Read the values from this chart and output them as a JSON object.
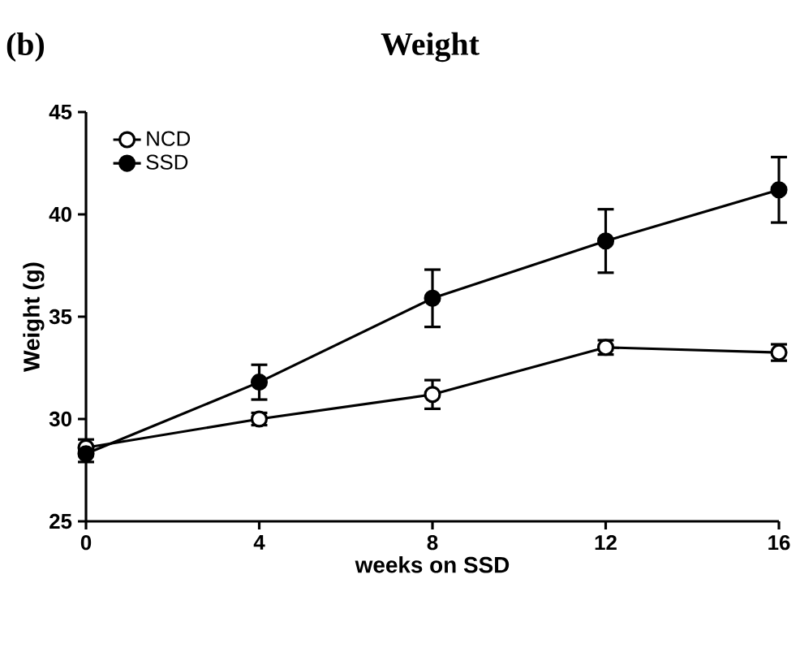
{
  "chart_data": {
    "type": "line",
    "title": "Weight",
    "xlabel": "weeks on SSD",
    "ylabel": "Weight (g)",
    "annotations": [
      "(b)"
    ],
    "x": [
      0,
      4,
      8,
      12,
      16
    ],
    "series": [
      {
        "name": "NCD",
        "color": "#000000",
        "values": [
          28.6,
          30.0,
          31.2,
          33.5,
          33.25
        ],
        "errors": [
          [
            27.9,
            29.0
          ],
          0.3,
          0.7,
          0.35,
          0.4
        ]
      },
      {
        "name": "SSD",
        "color": "#000000",
        "values": [
          28.3,
          31.8,
          35.9,
          38.7,
          41.2
        ],
        "errors": [
          null,
          0.85,
          1.4,
          1.55,
          1.6
        ]
      }
    ],
    "xlim": [
      0,
      16
    ],
    "ylim": [
      25,
      45
    ],
    "xticks": [
      0,
      4,
      8,
      12,
      16
    ],
    "yticks": [
      25,
      30,
      35,
      40,
      45
    ],
    "grid": false,
    "legend": "top left",
    "marker": "circle",
    "line_style": "solid"
  }
}
